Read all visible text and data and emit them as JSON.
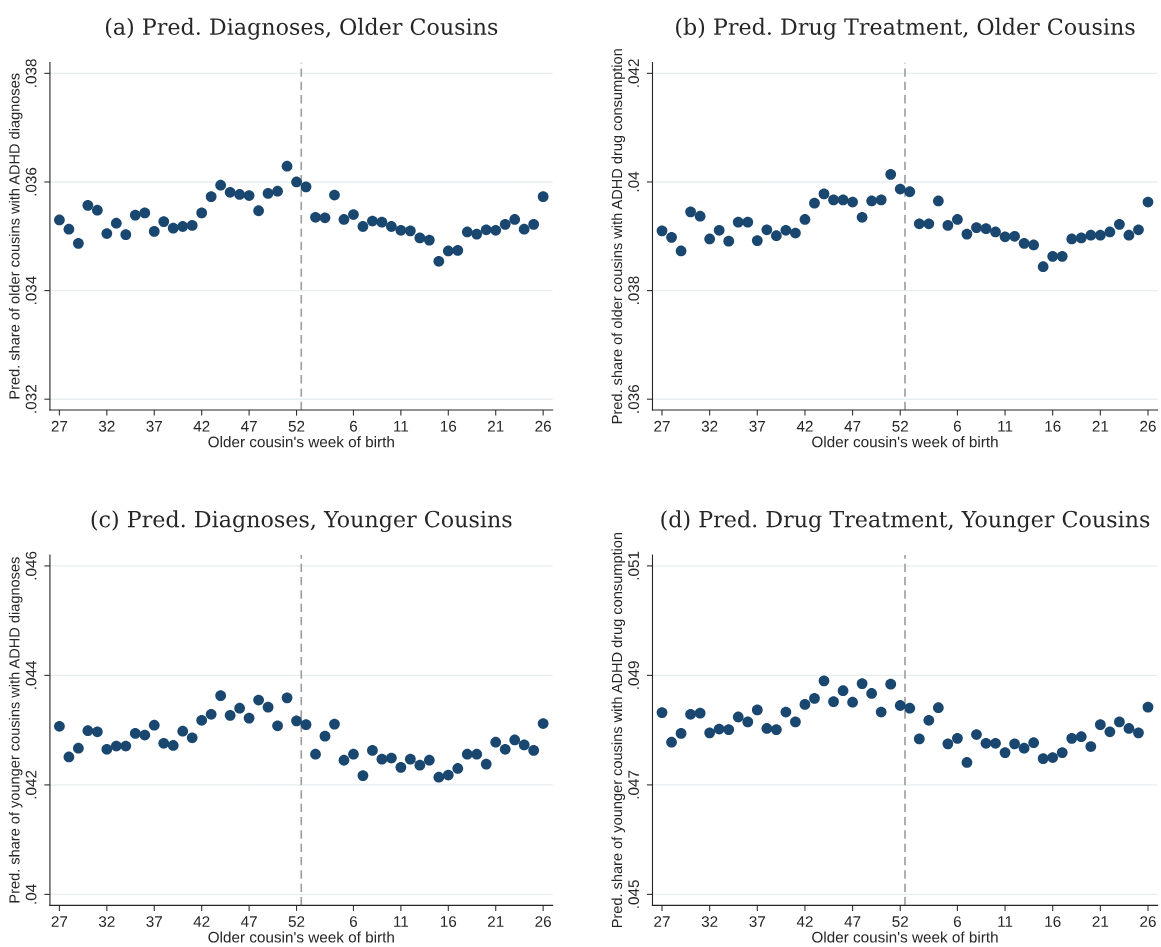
{
  "chart_data": [
    {
      "type": "scatter",
      "title": "(a) Pred. Diagnoses, Older Cousins",
      "xlabel": "Older cousin's week of birth",
      "ylabel": "Pred. share of older cousins with ADHD diagnoses",
      "color": "#1a476f",
      "marker": "circle",
      "grid": "y",
      "categories": [
        "27",
        null,
        null,
        null,
        null,
        "32",
        null,
        null,
        null,
        null,
        "37",
        null,
        null,
        null,
        null,
        "42",
        null,
        null,
        null,
        null,
        "47",
        null,
        null,
        null,
        null,
        "52",
        null,
        null,
        null,
        null,
        null,
        "6",
        null,
        null,
        null,
        null,
        "11",
        null,
        null,
        null,
        null,
        "16",
        null,
        null,
        null,
        null,
        "21",
        null,
        null,
        null,
        null,
        "26"
      ],
      "values": [
        0.0353,
        0.03513,
        0.03487,
        0.03557,
        0.03548,
        0.03505,
        0.03524,
        0.03503,
        0.03539,
        0.03543,
        0.03509,
        0.03527,
        0.03515,
        0.03518,
        0.0352,
        0.03543,
        0.03573,
        0.03594,
        0.03581,
        0.03577,
        0.03575,
        0.03547,
        0.03579,
        0.03583,
        0.03629,
        0.036,
        0.03591,
        0.03535,
        0.03534,
        0.03576,
        0.03531,
        0.0354,
        0.03518,
        0.03528,
        0.03526,
        0.03518,
        0.03511,
        0.0351,
        0.03497,
        0.03493,
        0.03454,
        0.03473,
        0.03474,
        0.03508,
        0.03504,
        0.03512,
        0.03511,
        0.03522,
        0.03531,
        0.03513,
        0.03522,
        0.03573
      ],
      "ylim": [
        0.0318,
        0.0382
      ],
      "yticks": [
        {
          "value": 0.032,
          "label": ".032"
        },
        {
          "value": 0.034,
          "label": ".034"
        },
        {
          "value": 0.036,
          "label": ".036"
        },
        {
          "value": 0.038,
          "label": ".038"
        }
      ],
      "ref_lines": [
        {
          "axis": "x",
          "value": "52",
          "color": "#a0a0a0",
          "line_style": "dashed"
        }
      ]
    },
    {
      "type": "scatter",
      "title": "(b) Pred. Drug Treatment, Older Cousins",
      "xlabel": "Older cousin's week of birth",
      "ylabel": "Pred. share of older cousins with ADHD drug consumption",
      "color": "#1a476f",
      "marker": "circle",
      "grid": "y",
      "categories": [
        "27",
        null,
        null,
        null,
        null,
        "32",
        null,
        null,
        null,
        null,
        "37",
        null,
        null,
        null,
        null,
        "42",
        null,
        null,
        null,
        null,
        "47",
        null,
        null,
        null,
        null,
        "52",
        null,
        null,
        null,
        null,
        null,
        "6",
        null,
        null,
        null,
        null,
        "11",
        null,
        null,
        null,
        null,
        "16",
        null,
        null,
        null,
        null,
        "21",
        null,
        null,
        null,
        null,
        "26"
      ],
      "values": [
        0.0391,
        0.03898,
        0.03873,
        0.03945,
        0.03937,
        0.03895,
        0.03911,
        0.03891,
        0.03926,
        0.03926,
        0.03892,
        0.03912,
        0.03901,
        0.03911,
        0.03906,
        0.03931,
        0.03961,
        0.03978,
        0.03967,
        0.03967,
        0.03963,
        0.03935,
        0.03965,
        0.03967,
        0.04014,
        0.03987,
        0.03982,
        0.03923,
        0.03923,
        0.03965,
        0.0392,
        0.03931,
        0.03904,
        0.03916,
        0.03914,
        0.03908,
        0.03899,
        0.039,
        0.03887,
        0.03884,
        0.03844,
        0.03863,
        0.03863,
        0.03895,
        0.03897,
        0.03902,
        0.03902,
        0.03908,
        0.03922,
        0.03902,
        0.03912,
        0.03963
      ],
      "ylim": [
        0.0358,
        0.0422
      ],
      "yticks": [
        {
          "value": 0.036,
          "label": ".036"
        },
        {
          "value": 0.038,
          "label": ".038"
        },
        {
          "value": 0.04,
          "label": ".04"
        },
        {
          "value": 0.042,
          "label": ".042"
        }
      ],
      "ref_lines": [
        {
          "axis": "x",
          "value": "52",
          "color": "#a0a0a0",
          "line_style": "dashed"
        }
      ]
    },
    {
      "type": "scatter",
      "title": "(c) Pred. Diagnoses, Younger Cousins",
      "xlabel": "Older cousin's week of birth",
      "ylabel": "Pred. share of younger cousins with ADHD diagnoses",
      "color": "#1a476f",
      "marker": "circle",
      "grid": "y",
      "categories": [
        "27",
        null,
        null,
        null,
        null,
        "32",
        null,
        null,
        null,
        null,
        "37",
        null,
        null,
        null,
        null,
        "42",
        null,
        null,
        null,
        null,
        "47",
        null,
        null,
        null,
        null,
        "52",
        null,
        null,
        null,
        null,
        null,
        "6",
        null,
        null,
        null,
        null,
        "11",
        null,
        null,
        null,
        null,
        "16",
        null,
        null,
        null,
        null,
        "21",
        null,
        null,
        null,
        null,
        "26"
      ],
      "values": [
        0.04307,
        0.04251,
        0.04267,
        0.04299,
        0.04297,
        0.04265,
        0.04271,
        0.04271,
        0.04294,
        0.04291,
        0.04309,
        0.04276,
        0.04272,
        0.04298,
        0.04286,
        0.04318,
        0.04329,
        0.04363,
        0.04327,
        0.0434,
        0.04322,
        0.04355,
        0.04342,
        0.04308,
        0.04359,
        0.04317,
        0.0431,
        0.04256,
        0.04289,
        0.04311,
        0.04245,
        0.04256,
        0.04217,
        0.04263,
        0.04247,
        0.04249,
        0.04232,
        0.04247,
        0.04236,
        0.04245,
        0.04214,
        0.04218,
        0.0423,
        0.04256,
        0.04256,
        0.04238,
        0.04278,
        0.04265,
        0.04282,
        0.04273,
        0.04263,
        0.04312
      ],
      "ylim": [
        0.0398,
        0.0462
      ],
      "yticks": [
        {
          "value": 0.04,
          "label": ".04"
        },
        {
          "value": 0.042,
          "label": ".042"
        },
        {
          "value": 0.044,
          "label": ".044"
        },
        {
          "value": 0.046,
          "label": ".046"
        }
      ],
      "ref_lines": [
        {
          "axis": "x",
          "value": "52",
          "color": "#a0a0a0",
          "line_style": "dashed"
        }
      ]
    },
    {
      "type": "scatter",
      "title": "(d) Pred. Drug Treatment, Younger Cousins",
      "xlabel": "Older cousin's week of birth",
      "ylabel": "Pred. share of younger cousins with ADHD drug consumption",
      "color": "#1a476f",
      "marker": "circle",
      "grid": "y",
      "categories": [
        "27",
        null,
        null,
        null,
        null,
        "32",
        null,
        null,
        null,
        null,
        "37",
        null,
        null,
        null,
        null,
        "42",
        null,
        null,
        null,
        null,
        "47",
        null,
        null,
        null,
        null,
        "52",
        null,
        null,
        null,
        null,
        null,
        "6",
        null,
        null,
        null,
        null,
        "11",
        null,
        null,
        null,
        null,
        "16",
        null,
        null,
        null,
        null,
        "21",
        null,
        null,
        null,
        null,
        "26"
      ],
      "values": [
        0.04832,
        0.04778,
        0.04794,
        0.04829,
        0.04831,
        0.04795,
        0.04802,
        0.04801,
        0.04824,
        0.04815,
        0.04837,
        0.04803,
        0.04801,
        0.04833,
        0.04815,
        0.04847,
        0.04858,
        0.0489,
        0.04852,
        0.04872,
        0.04851,
        0.04885,
        0.04867,
        0.04833,
        0.04884,
        0.04845,
        0.0484,
        0.04784,
        0.04818,
        0.04841,
        0.04775,
        0.04785,
        0.04741,
        0.04792,
        0.04776,
        0.04776,
        0.04759,
        0.04775,
        0.04767,
        0.04777,
        0.04748,
        0.0475,
        0.04759,
        0.04785,
        0.04788,
        0.0477,
        0.0481,
        0.04797,
        0.04815,
        0.04803,
        0.04795,
        0.04842
      ],
      "ylim": [
        0.0448,
        0.0512
      ],
      "yticks": [
        {
          "value": 0.045,
          "label": ".045"
        },
        {
          "value": 0.047,
          "label": ".047"
        },
        {
          "value": 0.049,
          "label": ".049"
        },
        {
          "value": 0.051,
          "label": ".051"
        }
      ],
      "ref_lines": [
        {
          "axis": "x",
          "value": "52",
          "color": "#a0a0a0",
          "line_style": "dashed"
        }
      ]
    }
  ]
}
